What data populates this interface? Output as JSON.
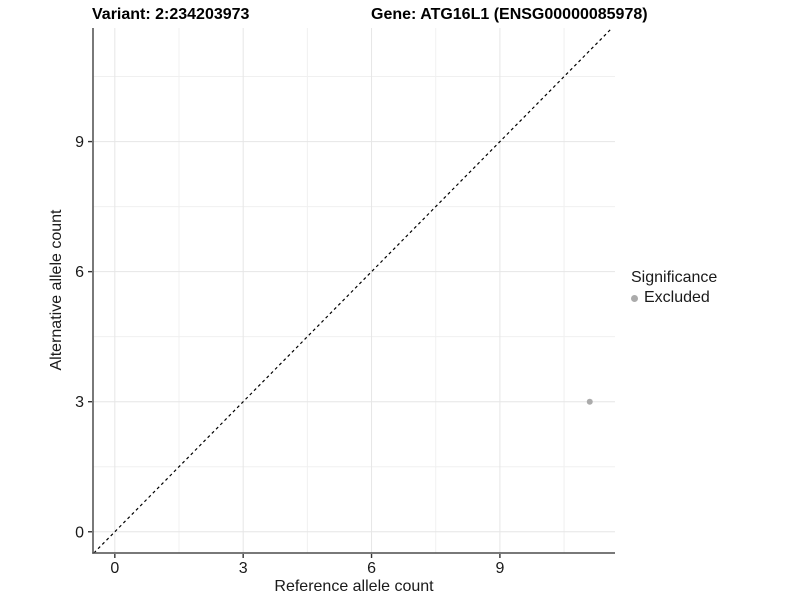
{
  "header": {
    "variant_title": "Variant: 2:234203973",
    "gene_title": "Gene: ATG16L1 (ENSG00000085978)"
  },
  "chart_data": {
    "type": "scatter",
    "xlabel": "Reference allele count",
    "ylabel": "Alternative allele count",
    "xlim": [
      -0.51,
      11.69
    ],
    "ylim": [
      -0.49,
      11.62
    ],
    "x_major_ticks": [
      0,
      3,
      6,
      9
    ],
    "y_major_ticks": [
      0,
      3,
      6,
      9
    ],
    "x_minor_ticks": [
      1.5,
      4.5,
      7.5,
      10.5
    ],
    "y_minor_ticks": [
      1.5,
      4.5,
      7.5,
      10.5
    ],
    "grid": true,
    "legend_position": "right",
    "identity_line": {
      "slope": 1,
      "intercept": 0,
      "style": "dashed",
      "color": "#000000"
    },
    "series": [
      {
        "name": "Excluded",
        "color": "#ababab",
        "point_radius": 3,
        "points": [
          {
            "x": 11.1,
            "y": 3
          }
        ]
      }
    ],
    "legend": {
      "title": "Significance",
      "items": [
        {
          "label": "Excluded",
          "color": "#ababab"
        }
      ]
    }
  },
  "colors": {
    "background": "#ffffff",
    "grid_major": "#e6e6e6",
    "grid_minor": "#f0f0f0",
    "axis_line": "#4d4d4d",
    "tick_mark": "#333333",
    "tick_text": "#1a1a1a",
    "point": "#ababab"
  }
}
